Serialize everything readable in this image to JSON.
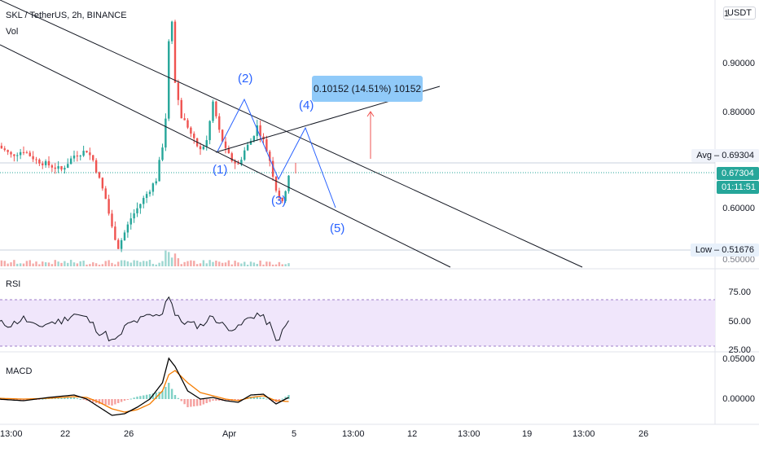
{
  "header": {
    "symbol": "SKL / TetherUS, 2h, BINANCE",
    "volume_label": "Vol",
    "currency_button": "USDT"
  },
  "panes": {
    "rsi_label": "RSI",
    "macd_label": "MACD"
  },
  "price_axis": {
    "ticks": [
      "0.90000",
      "0.80000",
      "0.70000",
      "0.60000",
      "0.50000"
    ],
    "avg_label": "Avg",
    "avg_value": "0.69304",
    "current_value": "0.67304",
    "countdown": "01:11:51",
    "low_label": "Low",
    "low_value": "0.51676",
    "top_partial": "1"
  },
  "rsi_axis": {
    "ticks": [
      "75.00",
      "50.00",
      "25.00"
    ]
  },
  "macd_axis": {
    "ticks": [
      "0.05000",
      "0.00000"
    ]
  },
  "time_axis": {
    "ticks": [
      "13:00",
      "22",
      "26",
      "Apr",
      "5",
      "13:00",
      "12",
      "13:00",
      "19",
      "13:00",
      "26"
    ]
  },
  "measure": {
    "text": "0.10152 (14.51%) 10152"
  },
  "waves": [
    "(1)",
    "(2)",
    "(3)",
    "(4)",
    "(5)"
  ],
  "colors": {
    "up": "#26a69a",
    "down": "#ef5350",
    "wave": "#2962ff",
    "rsi_band": "#f0e6fb",
    "macd_line": "#000000",
    "signal_line": "#f57c00",
    "measure_bg": "#90caf9"
  },
  "chart_data": [
    {
      "type": "line",
      "title": "SKL / TetherUS, 2h, BINANCE",
      "x_unit": "days since Mar 17",
      "x_ticks": [
        {
          "label": "22",
          "x": 5
        },
        {
          "label": "26",
          "x": 9
        },
        {
          "label": "Apr",
          "x": 15
        },
        {
          "label": "5",
          "x": 19
        },
        {
          "label": "12",
          "x": 26
        },
        {
          "label": "19",
          "x": 33
        },
        {
          "label": "26",
          "x": 40
        }
      ],
      "ylim": [
        0.49,
        1.02
      ],
      "series": [
        {
          "name": "Price (approx. close)",
          "x": [
            0,
            1,
            2,
            3,
            4,
            5,
            6,
            7,
            7.5,
            8,
            8.5,
            9,
            9.5,
            10,
            10.5,
            11,
            11.5,
            12,
            12.5,
            13,
            13.3,
            13.5,
            13.8,
            14,
            14.5,
            15,
            15.5,
            16,
            16.5,
            17,
            17.5,
            18,
            18.5,
            19,
            19.5,
            20,
            20.5,
            21,
            21.5,
            22,
            22.5,
            23
          ],
          "y": [
            0.73,
            0.71,
            0.72,
            0.7,
            0.69,
            0.68,
            0.71,
            0.72,
            0.7,
            0.66,
            0.62,
            0.56,
            0.52,
            0.55,
            0.58,
            0.6,
            0.62,
            0.64,
            0.66,
            0.73,
            0.8,
            0.95,
            1.0,
            0.86,
            0.79,
            0.77,
            0.74,
            0.72,
            0.74,
            0.82,
            0.76,
            0.72,
            0.7,
            0.69,
            0.72,
            0.74,
            0.77,
            0.74,
            0.7,
            0.64,
            0.61,
            0.67
          ]
        }
      ],
      "horizontal_lines": [
        {
          "name": "Avg",
          "y": 0.69304
        },
        {
          "name": "Low",
          "y": 0.51676
        },
        {
          "name": "Last",
          "y": 0.67304
        }
      ],
      "annotations": [
        "(1)",
        "(2)",
        "(3)",
        "(4)",
        "(5)",
        "0.10152 (14.51%) 10152"
      ]
    },
    {
      "type": "line",
      "title": "RSI",
      "ylim": [
        25,
        80
      ],
      "band": [
        30,
        70
      ],
      "series": [
        {
          "name": "RSI",
          "x": [
            0,
            1,
            2,
            3,
            4,
            5,
            6,
            7,
            7.5,
            8,
            8.5,
            9,
            9.5,
            10,
            10.5,
            11,
            11.5,
            12,
            12.5,
            13,
            13.3,
            13.5,
            13.8,
            14,
            14.5,
            15,
            15.5,
            16,
            16.5,
            17,
            17.5,
            18,
            18.5,
            19,
            19.5,
            20,
            20.5,
            21,
            21.5,
            22,
            22.5,
            23
          ],
          "y": [
            50,
            48,
            55,
            45,
            50,
            52,
            60,
            55,
            48,
            40,
            38,
            30,
            33,
            45,
            50,
            52,
            55,
            58,
            57,
            62,
            75,
            80,
            70,
            58,
            52,
            50,
            48,
            47,
            52,
            58,
            50,
            46,
            45,
            44,
            52,
            56,
            60,
            55,
            48,
            30,
            40,
            52
          ]
        }
      ]
    },
    {
      "type": "line",
      "title": "MACD",
      "ylim": [
        -0.03,
        0.06
      ],
      "series": [
        {
          "name": "MACD",
          "x": [
            0,
            2,
            4,
            6,
            7,
            8,
            9,
            10,
            11,
            12,
            13,
            13.5,
            14,
            15,
            16,
            17,
            18,
            19,
            20,
            21,
            22,
            23
          ],
          "y": [
            0.0,
            -0.002,
            0.002,
            0.005,
            0.0,
            -0.01,
            -0.02,
            -0.018,
            -0.01,
            0.0,
            0.02,
            0.05,
            0.04,
            0.01,
            0.0,
            0.002,
            -0.002,
            -0.004,
            0.005,
            0.006,
            -0.006,
            0.002
          ]
        },
        {
          "name": "Signal",
          "x": [
            0,
            2,
            4,
            6,
            7,
            8,
            9,
            10,
            11,
            12,
            13,
            13.5,
            14,
            15,
            16,
            17,
            18,
            19,
            20,
            21,
            22,
            23
          ],
          "y": [
            0.001,
            0.0,
            0.001,
            0.003,
            0.002,
            -0.004,
            -0.012,
            -0.016,
            -0.013,
            -0.006,
            0.01,
            0.03,
            0.035,
            0.02,
            0.008,
            0.004,
            0.0,
            -0.002,
            0.002,
            0.004,
            -0.002,
            -0.003
          ]
        }
      ]
    }
  ]
}
